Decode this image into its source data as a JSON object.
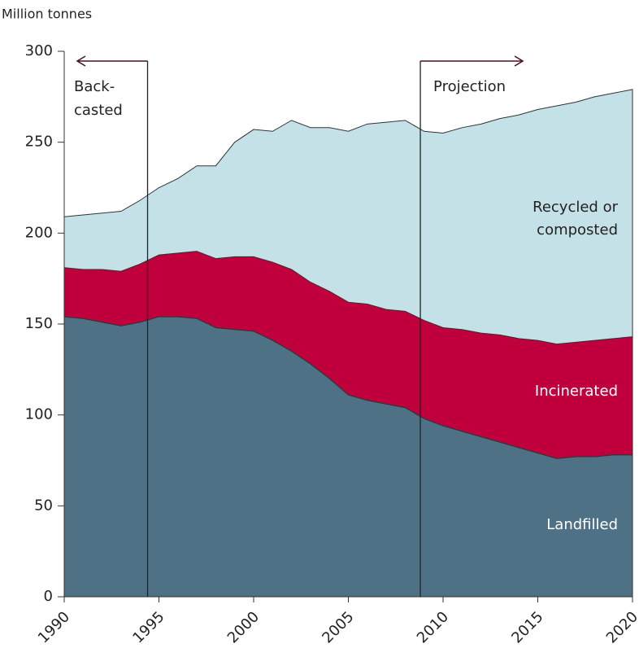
{
  "chart_data": {
    "type": "stacked_area",
    "y_axis_label": "Million tonnes",
    "x": [
      1990,
      1991,
      1992,
      1993,
      1994,
      1995,
      1996,
      1997,
      1998,
      1999,
      2000,
      2001,
      2002,
      2003,
      2004,
      2005,
      2006,
      2007,
      2008,
      2009,
      2010,
      2011,
      2012,
      2013,
      2014,
      2015,
      2016,
      2017,
      2018,
      2019,
      2020
    ],
    "series": [
      {
        "name": "Landfilled",
        "color": "#4f7185",
        "label_color": "#ffffff",
        "values": [
          154,
          153,
          151,
          149,
          151,
          154,
          154,
          153,
          148,
          147,
          146,
          141,
          135,
          128,
          120,
          111,
          108,
          106,
          104,
          98,
          94,
          91,
          88,
          85,
          82,
          79,
          76,
          77,
          77,
          78,
          78
        ]
      },
      {
        "name": "Incinerated",
        "color": "#c0003c",
        "label_color": "#ffffff",
        "values": [
          27,
          27,
          29,
          30,
          32,
          34,
          35,
          37,
          38,
          40,
          41,
          43,
          45,
          45,
          48,
          51,
          53,
          52,
          53,
          54,
          54,
          56,
          57,
          59,
          60,
          62,
          63,
          63,
          64,
          64,
          65
        ]
      },
      {
        "name": "Recycled or composted",
        "color": "#c5e1e8",
        "label_color": "#222222",
        "values": [
          28,
          30,
          31,
          33,
          35,
          37,
          41,
          47,
          51,
          63,
          70,
          72,
          82,
          85,
          90,
          94,
          99,
          103,
          105,
          104,
          107,
          111,
          115,
          119,
          123,
          127,
          131,
          132,
          134,
          135,
          136
        ]
      }
    ],
    "xlim": [
      1990,
      2020
    ],
    "xticks": [
      1990,
      1995,
      2000,
      2005,
      2010,
      2015,
      2020
    ],
    "ylim": [
      0,
      300
    ],
    "yticks": [
      0,
      50,
      100,
      150,
      200,
      250,
      300
    ],
    "annotations": [
      {
        "x": 1994.4,
        "direction": "left",
        "lines": [
          "Back-",
          "casted"
        ]
      },
      {
        "x": 2008.8,
        "direction": "right",
        "lines": [
          "Projection"
        ]
      }
    ]
  }
}
